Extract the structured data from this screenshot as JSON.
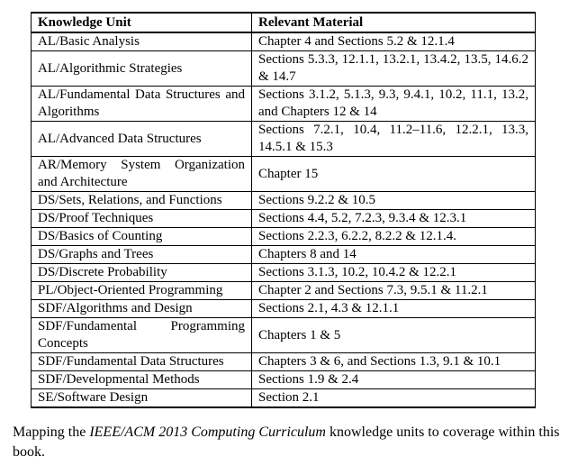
{
  "table": {
    "headers": [
      "Knowledge Unit",
      "Relevant Material"
    ],
    "rows": [
      [
        "AL/Basic Analysis",
        "Chapter 4 and Sections 5.2 & 12.1.4"
      ],
      [
        "AL/Algorithmic Strategies",
        "Sections 5.3.3, 12.1.1, 13.2.1, 13.4.2, 13.5, 14.6.2 & 14.7"
      ],
      [
        "AL/Fundamental Data Structures and Algorithms",
        "Sections 3.1.2, 5.1.3, 9.3, 9.4.1, 10.2, 11.1, 13.2, and Chapters 12 & 14"
      ],
      [
        "AL/Advanced Data Structures",
        "Sections 7.2.1, 10.4, 11.2–11.6, 12.2.1, 13.3, 14.5.1 & 15.3"
      ],
      [
        "AR/Memory System Organization and Architecture",
        "Chapter 15"
      ],
      [
        "DS/Sets, Relations, and Functions",
        "Sections 9.2.2 & 10.5"
      ],
      [
        "DS/Proof Techniques",
        "Sections 4.4, 5.2, 7.2.3, 9.3.4 & 12.3.1"
      ],
      [
        "DS/Basics of Counting",
        "Sections 2.2.3, 6.2.2, 8.2.2 & 12.1.4."
      ],
      [
        "DS/Graphs and Trees",
        "Chapters 8 and 14"
      ],
      [
        "DS/Discrete Probability",
        "Sections 3.1.3, 10.2, 10.4.2 & 12.2.1"
      ],
      [
        "PL/Object-Oriented Programming",
        "Chapter 2 and Sections 7.3, 9.5.1 & 11.2.1"
      ],
      [
        "SDF/Algorithms and Design",
        "Sections 2.1, 4.3 & 12.1.1"
      ],
      [
        "SDF/Fundamental Programming Concepts",
        "Chapters 1 & 5"
      ],
      [
        "SDF/Fundamental Data Structures",
        "Chapters 3 & 6, and Sections 1.3, 9.1 & 10.1"
      ],
      [
        "SDF/Developmental Methods",
        "Sections 1.9 & 2.4"
      ],
      [
        "SE/Software Design",
        "Section 2.1"
      ]
    ]
  },
  "caption": {
    "prefix": "Mapping the ",
    "italic": "IEEE/ACM 2013 Computing Curriculum",
    "suffix": " knowledge units to coverage within this book."
  }
}
